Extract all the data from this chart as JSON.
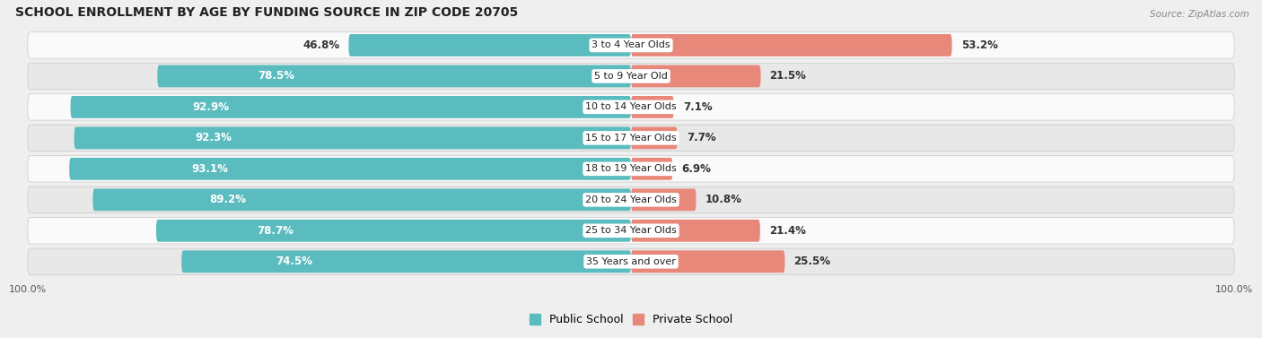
{
  "title": "SCHOOL ENROLLMENT BY AGE BY FUNDING SOURCE IN ZIP CODE 20705",
  "source": "Source: ZipAtlas.com",
  "categories": [
    "3 to 4 Year Olds",
    "5 to 9 Year Old",
    "10 to 14 Year Olds",
    "15 to 17 Year Olds",
    "18 to 19 Year Olds",
    "20 to 24 Year Olds",
    "25 to 34 Year Olds",
    "35 Years and over"
  ],
  "public_values": [
    46.8,
    78.5,
    92.9,
    92.3,
    93.1,
    89.2,
    78.7,
    74.5
  ],
  "private_values": [
    53.2,
    21.5,
    7.1,
    7.7,
    6.9,
    10.8,
    21.4,
    25.5
  ],
  "public_color": "#5BBCBF",
  "private_color": "#E8887A",
  "bg_color": "#EFEFEF",
  "row_bg_light": "#FAFAFA",
  "row_bg_dark": "#E8E8E8",
  "title_fontsize": 10,
  "bar_label_fontsize": 8.5,
  "cat_label_fontsize": 8,
  "legend_fontsize": 9,
  "axis_label_fontsize": 8
}
